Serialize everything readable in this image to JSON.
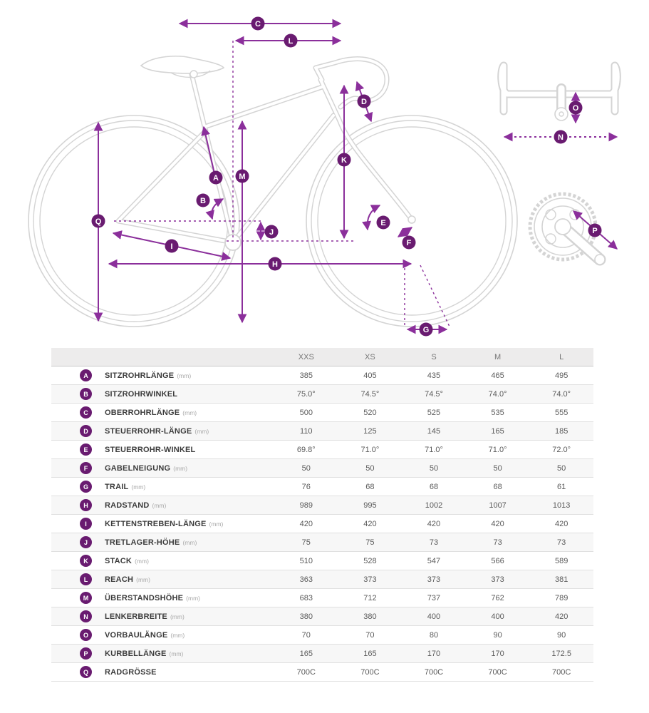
{
  "colors": {
    "accent_arrow": "#8B2F9B",
    "badge_fill": "#691B70",
    "sketch_outline": "#D4D4D4",
    "table_header_bg": "#EDECEC",
    "table_row_alt_bg": "#F7F7F7",
    "table_text": "#555555"
  },
  "diagram": {
    "figures": [
      "bike-side-view",
      "handlebar-top-view",
      "crankset-top-view"
    ],
    "badges": [
      "A",
      "B",
      "C",
      "D",
      "E",
      "F",
      "G",
      "H",
      "I",
      "J",
      "K",
      "L",
      "M",
      "N",
      "O",
      "P",
      "Q"
    ]
  },
  "table": {
    "columns": [
      "XXS",
      "XS",
      "S",
      "M",
      "L"
    ],
    "rows": [
      {
        "letter": "A",
        "label": "SITZROHRLÄNGE",
        "unit": "(mm)",
        "values": [
          "385",
          "405",
          "435",
          "465",
          "495"
        ]
      },
      {
        "letter": "B",
        "label": "SITZROHRWINKEL",
        "unit": "",
        "values": [
          "75.0°",
          "74.5°",
          "74.5°",
          "74.0°",
          "74.0°"
        ]
      },
      {
        "letter": "C",
        "label": "OBERROHRLÄNGE",
        "unit": "(mm)",
        "values": [
          "500",
          "520",
          "525",
          "535",
          "555"
        ]
      },
      {
        "letter": "D",
        "label": "STEUERROHR-LÄNGE",
        "unit": "(mm)",
        "values": [
          "110",
          "125",
          "145",
          "165",
          "185"
        ]
      },
      {
        "letter": "E",
        "label": "STEUERROHR-WINKEL",
        "unit": "",
        "values": [
          "69.8°",
          "71.0°",
          "71.0°",
          "71.0°",
          "72.0°"
        ]
      },
      {
        "letter": "F",
        "label": "GABELNEIGUNG",
        "unit": "(mm)",
        "values": [
          "50",
          "50",
          "50",
          "50",
          "50"
        ]
      },
      {
        "letter": "G",
        "label": "TRAIL",
        "unit": "(mm)",
        "values": [
          "76",
          "68",
          "68",
          "68",
          "61"
        ]
      },
      {
        "letter": "H",
        "label": "RADSTAND",
        "unit": "(mm)",
        "values": [
          "989",
          "995",
          "1002",
          "1007",
          "1013"
        ]
      },
      {
        "letter": "I",
        "label": "KETTENSTREBEN-LÄNGE",
        "unit": "(mm)",
        "values": [
          "420",
          "420",
          "420",
          "420",
          "420"
        ]
      },
      {
        "letter": "J",
        "label": "TRETLAGER-HÖHE",
        "unit": "(mm)",
        "values": [
          "75",
          "75",
          "73",
          "73",
          "73"
        ]
      },
      {
        "letter": "K",
        "label": "STACK",
        "unit": "(mm)",
        "values": [
          "510",
          "528",
          "547",
          "566",
          "589"
        ]
      },
      {
        "letter": "L",
        "label": "REACH",
        "unit": "(mm)",
        "values": [
          "363",
          "373",
          "373",
          "373",
          "381"
        ]
      },
      {
        "letter": "M",
        "label": "ÜBERSTANDSHÖHE",
        "unit": "(mm)",
        "values": [
          "683",
          "712",
          "737",
          "762",
          "789"
        ]
      },
      {
        "letter": "N",
        "label": "LENKERBREITE",
        "unit": "(mm)",
        "values": [
          "380",
          "380",
          "400",
          "400",
          "420"
        ]
      },
      {
        "letter": "O",
        "label": "VORBAULÄNGE",
        "unit": "(mm)",
        "values": [
          "70",
          "70",
          "80",
          "90",
          "90"
        ]
      },
      {
        "letter": "P",
        "label": "KURBELLÄNGE",
        "unit": "(mm)",
        "values": [
          "165",
          "165",
          "170",
          "170",
          "172.5"
        ]
      },
      {
        "letter": "Q",
        "label": "RADGRÖSSE",
        "unit": "",
        "values": [
          "700C",
          "700C",
          "700C",
          "700C",
          "700C"
        ]
      }
    ]
  }
}
